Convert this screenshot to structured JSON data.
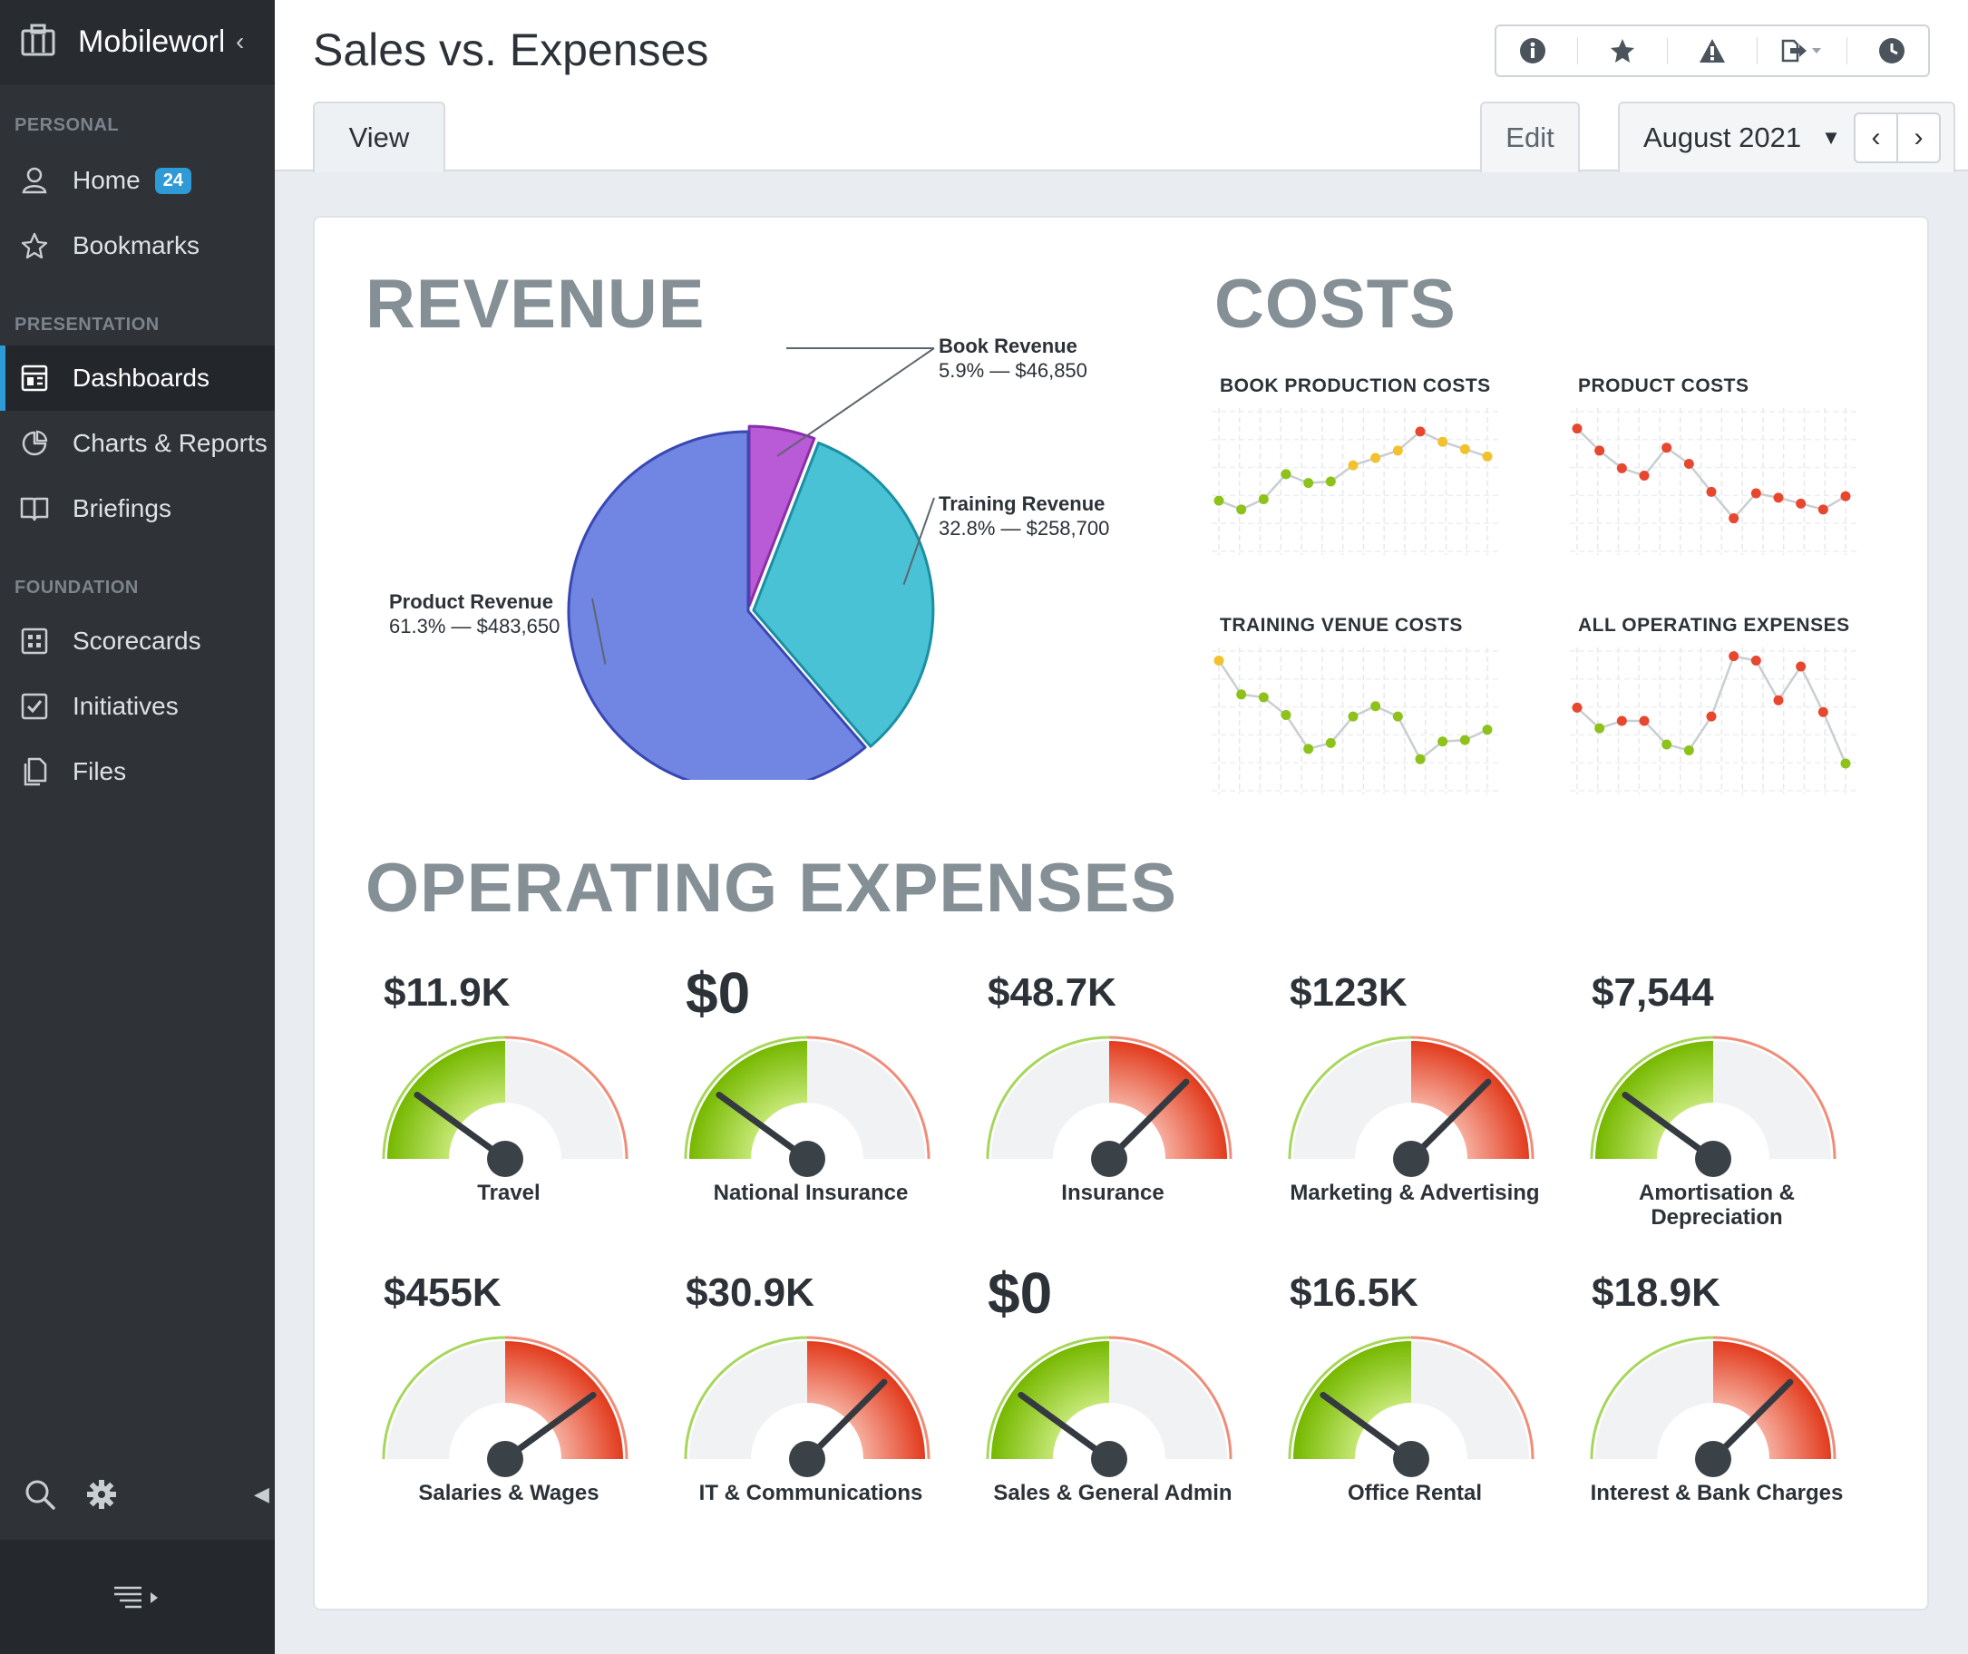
{
  "app": {
    "name": "Mobileworks"
  },
  "sidebar": {
    "sections": {
      "personal": "PERSONAL",
      "presentation": "PRESENTATION",
      "foundation": "FOUNDATION"
    },
    "items": [
      {
        "label": "Home",
        "icon": "user-icon",
        "badge": "24"
      },
      {
        "label": "Bookmarks",
        "icon": "star-icon"
      },
      {
        "label": "Dashboards",
        "icon": "dashboard-icon",
        "active": true
      },
      {
        "label": "Charts & Reports",
        "icon": "pie-chart-icon"
      },
      {
        "label": "Briefings",
        "icon": "book-icon"
      },
      {
        "label": "Scorecards",
        "icon": "scorecard-icon"
      },
      {
        "label": "Initiatives",
        "icon": "checkbox-icon"
      },
      {
        "label": "Files",
        "icon": "files-icon"
      }
    ]
  },
  "header": {
    "title": "Sales vs. Expenses",
    "tabs": {
      "view": "View",
      "edit": "Edit"
    },
    "period": "August 2021",
    "toolbar_icons": [
      "info-icon",
      "star-icon",
      "warning-icon",
      "export-icon",
      "history-icon"
    ]
  },
  "revenue": {
    "heading": "REVENUE",
    "colors": {
      "book": "#b95ad6",
      "training": "#49c2d5",
      "product": "#7086e2"
    },
    "chart_data": {
      "type": "pie",
      "slices": [
        {
          "name": "Book Revenue",
          "label": "5.9% — $46,850",
          "percent": 5.9,
          "value": 46850
        },
        {
          "name": "Training Revenue",
          "label": "32.8% — $258,700",
          "percent": 32.8,
          "value": 258700
        },
        {
          "name": "Product Revenue",
          "label": "61.3% — $483,650",
          "percent": 61.3,
          "value": 483650
        }
      ]
    }
  },
  "costs": {
    "heading": "COSTS",
    "status_colors": {
      "green": "#8cc21a",
      "yellow": "#f2c22e",
      "red": "#e6472e"
    },
    "charts": [
      {
        "title": "BOOK PRODUCTION COSTS",
        "chart_data": {
          "type": "line",
          "values": [
            3.2,
            2.6,
            3.3,
            5.0,
            4.4,
            4.5,
            5.6,
            6.1,
            6.6,
            7.9,
            7.2,
            6.7,
            6.2
          ],
          "status": [
            "green",
            "green",
            "green",
            "green",
            "green",
            "green",
            "yellow",
            "yellow",
            "yellow",
            "red",
            "yellow",
            "yellow",
            "yellow"
          ]
        }
      },
      {
        "title": "PRODUCT COSTS",
        "chart_data": {
          "type": "line",
          "values": [
            8.1,
            6.6,
            5.4,
            4.9,
            6.8,
            5.7,
            3.8,
            2.0,
            3.7,
            3.4,
            3.0,
            2.6,
            3.5
          ],
          "status": [
            "red",
            "red",
            "red",
            "red",
            "red",
            "red",
            "red",
            "red",
            "red",
            "red",
            "red",
            "red",
            "red"
          ]
        }
      },
      {
        "title": "TRAINING VENUE COSTS",
        "chart_data": {
          "type": "line",
          "values": [
            8.6,
            6.3,
            6.1,
            4.9,
            2.6,
            3.0,
            4.8,
            5.5,
            4.8,
            1.9,
            3.1,
            3.2,
            3.9
          ],
          "status": [
            "yellow",
            "green",
            "green",
            "green",
            "green",
            "green",
            "green",
            "green",
            "green",
            "green",
            "green",
            "green",
            "green"
          ]
        }
      },
      {
        "title": "ALL OPERATING EXPENSES",
        "chart_data": {
          "type": "line",
          "values": [
            5.4,
            4.0,
            4.5,
            4.5,
            2.9,
            2.5,
            4.8,
            8.9,
            8.6,
            5.9,
            8.2,
            5.1,
            1.6
          ],
          "status": [
            "red",
            "green",
            "red",
            "red",
            "green",
            "green",
            "red",
            "red",
            "red",
            "red",
            "red",
            "red",
            "green"
          ]
        }
      }
    ]
  },
  "operating_expenses": {
    "heading": "OPERATING EXPENSES",
    "gauges": [
      {
        "value": "$11.9K",
        "label": "Travel",
        "level": 0.2
      },
      {
        "value": "$0",
        "label": "National Insurance",
        "level": 0.2
      },
      {
        "value": "$48.7K",
        "label": "Insurance",
        "level": 0.75
      },
      {
        "value": "$123K",
        "label": "Marketing & Advertising",
        "level": 0.75
      },
      {
        "value": "$7,544",
        "label": "Amortisation & Depreciation",
        "level": 0.2
      },
      {
        "value": "$455K",
        "label": "Salaries & Wages",
        "level": 0.8
      },
      {
        "value": "$30.9K",
        "label": "IT & Communications",
        "level": 0.75
      },
      {
        "value": "$0",
        "label": "Sales & General Admin",
        "level": 0.2
      },
      {
        "value": "$16.5K",
        "label": "Office Rental",
        "level": 0.2
      },
      {
        "value": "$18.9K",
        "label": "Interest & Bank Charges",
        "level": 0.75
      }
    ]
  }
}
